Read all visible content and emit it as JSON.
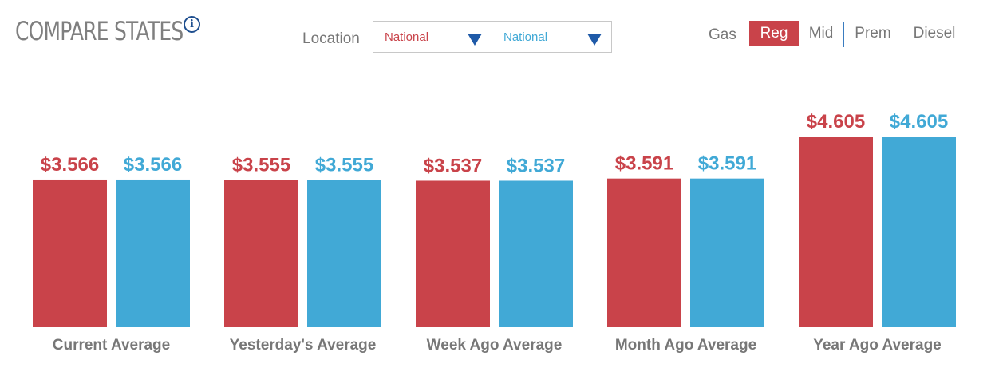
{
  "header": {
    "title": "COMPARE STATES",
    "info_icon": "info-icon"
  },
  "location": {
    "label": "Location",
    "select_a": "National",
    "select_b": "National",
    "caret_icon": "caret-down-icon"
  },
  "fuel": {
    "label": "Gas",
    "options": [
      "Reg",
      "Mid",
      "Prem",
      "Diesel"
    ],
    "selected": "Reg"
  },
  "colors": {
    "series_a": "#c9434a",
    "series_b": "#41a9d6"
  },
  "chart_data": {
    "type": "bar",
    "title": "",
    "xlabel": "",
    "ylabel": "",
    "categories": [
      "Current Average",
      "Yesterday's Average",
      "Week Ago Average",
      "Month Ago Average",
      "Year Ago Average"
    ],
    "series": [
      {
        "values": [
          3.566,
          3.555,
          3.537,
          3.591,
          4.605
        ],
        "labels": [
          "$3.566",
          "$3.555",
          "$3.537",
          "$3.591",
          "$4.605"
        ],
        "color": "#c9434a"
      },
      {
        "values": [
          3.566,
          3.555,
          3.537,
          3.591,
          4.605
        ],
        "labels": [
          "$3.566",
          "$3.555",
          "$3.537",
          "$3.591",
          "$4.605"
        ],
        "color": "#41a9d6"
      }
    ],
    "ylim": [
      0,
      5.3
    ],
    "grid": false
  }
}
